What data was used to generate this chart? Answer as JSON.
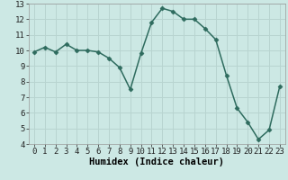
{
  "x": [
    0,
    1,
    2,
    3,
    4,
    5,
    6,
    7,
    8,
    9,
    10,
    11,
    12,
    13,
    14,
    15,
    16,
    17,
    18,
    19,
    20,
    21,
    22,
    23
  ],
  "y": [
    9.9,
    10.2,
    9.9,
    10.4,
    10.0,
    10.0,
    9.9,
    9.5,
    8.9,
    7.5,
    9.8,
    11.8,
    12.7,
    12.5,
    12.0,
    12.0,
    11.4,
    10.7,
    8.4,
    6.3,
    5.4,
    4.3,
    4.9,
    7.7
  ],
  "line_color": "#2e6b5e",
  "marker": "D",
  "marker_size": 2.5,
  "bg_color": "#cce8e4",
  "grid_color": "#b8d4d0",
  "xlabel": "Humidex (Indice chaleur)",
  "xlabel_fontsize": 7.5,
  "xtick_labels": [
    "0",
    "1",
    "2",
    "3",
    "4",
    "5",
    "6",
    "7",
    "8",
    "9",
    "10",
    "11",
    "12",
    "13",
    "14",
    "15",
    "16",
    "17",
    "18",
    "19",
    "20",
    "21",
    "22",
    "23"
  ],
  "ylim": [
    4,
    13
  ],
  "xlim": [
    -0.5,
    23.5
  ],
  "yticks": [
    4,
    5,
    6,
    7,
    8,
    9,
    10,
    11,
    12,
    13
  ],
  "tick_fontsize": 6.5,
  "line_width": 1.1
}
